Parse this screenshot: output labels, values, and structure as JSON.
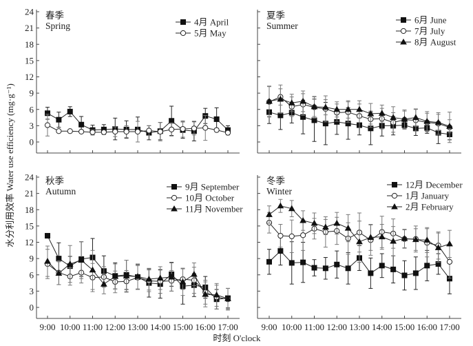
{
  "chart_data": {
    "type": "line",
    "ylabel": "水分利用效率 Water use efficiency (mg·g⁻¹)",
    "xlabel": "时刻 O'clock",
    "x": [
      "9:00",
      "9:30",
      "10:00",
      "10:30",
      "11:00",
      "11:30",
      "12:00",
      "12:30",
      "13:00",
      "13:30",
      "14:00",
      "14:30",
      "15:00",
      "15:30",
      "16:00",
      "16:30",
      "17:00"
    ],
    "xtick_labels": [
      "9:00",
      "10:00",
      "11:00",
      "12:00",
      "13:00",
      "14:00",
      "15:00",
      "16:00",
      "17:00"
    ],
    "ytick_labels": [
      "0",
      "3",
      "6",
      "9",
      "12",
      "15",
      "18",
      "21",
      "24"
    ],
    "ylim": [
      -2,
      24
    ],
    "grid": false,
    "legend_position": "top-right",
    "panels": [
      {
        "title_cn": "春季",
        "title_en": "Spring",
        "series": [
          {
            "name": "4月 April",
            "marker": "square",
            "values": [
              5.3,
              4.1,
              5.6,
              3.2,
              2.2,
              2.3,
              2.4,
              2.3,
              2.3,
              1.7,
              2.0,
              3.9,
              2.2,
              2.0,
              4.8,
              4.2,
              2.2
            ],
            "errors": [
              1.1,
              1.4,
              0.9,
              1.5,
              0.9,
              0.9,
              2.0,
              1.6,
              2.3,
              1.3,
              1.6,
              2.7,
              1.5,
              1.8,
              1.4,
              2.1,
              0.8
            ]
          },
          {
            "name": "5月 May",
            "marker": "circle",
            "values": [
              3.1,
              2.0,
              2.0,
              1.9,
              1.8,
              1.8,
              1.9,
              1.9,
              1.9,
              2.1,
              1.9,
              2.3,
              2.4,
              2.5,
              2.6,
              2.2,
              1.7
            ],
            "errors": [
              2.0,
              0.2,
              0.2,
              0.3,
              0.5,
              0.3,
              0.9,
              1.1,
              1.9,
              0.9,
              1.7,
              1.2,
              1.5,
              1.2,
              2.3,
              0.3,
              0.4
            ]
          }
        ]
      },
      {
        "title_cn": "夏季",
        "title_en": "Summer",
        "series": [
          {
            "name": "6月 June",
            "marker": "square",
            "values": [
              5.5,
              4.9,
              5.4,
              4.6,
              4.0,
              3.4,
              3.7,
              3.4,
              3.1,
              2.5,
              3.0,
              3.0,
              3.1,
              2.5,
              2.6,
              1.7,
              1.4
            ],
            "errors": [
              2.1,
              2.6,
              1.9,
              3.1,
              3.9,
              3.9,
              2.3,
              2.9,
              1.8,
              3.0,
              1.9,
              1.7,
              0.7,
              1.3,
              1.0,
              2.0,
              1.0
            ]
          },
          {
            "name": "7月 July",
            "marker": "circle",
            "values": [
              7.4,
              8.3,
              6.5,
              6.9,
              6.4,
              6.1,
              5.4,
              5.5,
              4.8,
              4.2,
              4.3,
              3.6,
              4.1,
              4.0,
              3.6,
              3.4,
              2.7
            ],
            "errors": [
              2.8,
              1.5,
              1.8,
              2.0,
              2.0,
              2.4,
              1.6,
              1.9,
              2.2,
              1.5,
              1.9,
              1.8,
              1.6,
              2.0,
              1.7,
              2.0,
              2.8
            ]
          },
          {
            "name": "8月 August",
            "marker": "triangle",
            "values": [
              7.5,
              7.9,
              7.2,
              7.5,
              6.5,
              6.4,
              6.0,
              6.0,
              6.0,
              5.2,
              5.3,
              4.5,
              4.2,
              4.5,
              3.8,
              3.6,
              2.9
            ],
            "errors": [
              2.8,
              2.6,
              1.6,
              1.9,
              1.8,
              1.4,
              1.4,
              1.6,
              1.6,
              1.9,
              1.5,
              2.0,
              1.7,
              1.6,
              1.8,
              1.5,
              1.2
            ]
          }
        ]
      },
      {
        "title_cn": "秋季",
        "title_en": "Autumn",
        "series": [
          {
            "name": "9月 September",
            "marker": "square",
            "values": [
              13.2,
              9.0,
              7.6,
              8.9,
              9.2,
              6.7,
              5.8,
              6.0,
              5.6,
              4.5,
              4.3,
              6.1,
              3.9,
              4.1,
              3.7,
              1.5,
              1.7
            ],
            "errors": [
              0.3,
              2.9,
              1.8,
              3.2,
              3.5,
              2.8,
              2.4,
              2.7,
              2.3,
              2.6,
              2.6,
              2.2,
              3.3,
              2.1,
              2.0,
              1.8,
              1.8
            ]
          },
          {
            "name": "10月 October",
            "marker": "circle",
            "values": [
              8.0,
              6.4,
              5.7,
              6.4,
              5.5,
              5.6,
              4.7,
              4.8,
              5.5,
              4.9,
              4.8,
              4.9,
              5.2,
              5.0,
              2.8,
              1.9,
              1.5
            ],
            "errors": [
              2.7,
              2.2,
              1.6,
              1.9,
              2.6,
              1.9,
              2.0,
              2.0,
              2.2,
              2.0,
              2.2,
              1.9,
              1.9,
              2.4,
              2.2,
              2.2,
              2.0
            ]
          },
          {
            "name": "11月 November",
            "marker": "triangle",
            "values": [
              8.5,
              6.3,
              8.0,
              8.7,
              6.9,
              4.3,
              5.7,
              5.8,
              5.7,
              5.2,
              5.4,
              5.6,
              4.7,
              6.1,
              2.4,
              2.3,
              1.6
            ],
            "errors": [
              2.8,
              2.1,
              3.4,
              3.4,
              3.6,
              1.8,
              2.3,
              2.9,
              2.3,
              2.0,
              2.1,
              2.6,
              2.5,
              2.1,
              2.3,
              2.1,
              1.9
            ]
          }
        ]
      },
      {
        "title_cn": "冬季",
        "title_en": "Winter",
        "series": [
          {
            "name": "12月 December",
            "marker": "square",
            "values": [
              8.4,
              10.4,
              8.2,
              8.3,
              7.3,
              7.2,
              7.9,
              7.2,
              9.1,
              6.3,
              7.7,
              7.0,
              5.9,
              6.3,
              7.7,
              8.0,
              5.3
            ],
            "errors": [
              2.3,
              2.6,
              3.9,
              3.7,
              1.5,
              2.0,
              2.5,
              2.9,
              2.3,
              2.8,
              2.2,
              2.5,
              2.7,
              3.0,
              2.8,
              1.9,
              2.8
            ]
          },
          {
            "name": "1月 January",
            "marker": "circle",
            "values": [
              15.6,
              13.2,
              13.1,
              13.3,
              14.5,
              13.9,
              14.1,
              12.7,
              13.8,
              12.4,
              13.9,
              13.6,
              12.6,
              12.6,
              11.9,
              11.4,
              8.4
            ],
            "errors": [
              1.9,
              2.1,
              3.0,
              2.8,
              1.9,
              2.8,
              2.5,
              2.9,
              3.6,
              2.8,
              2.9,
              2.7,
              1.7,
              2.4,
              2.6,
              2.5,
              3.0
            ]
          },
          {
            "name": "2月 February",
            "marker": "triangle",
            "values": [
              17.1,
              18.7,
              18.2,
              16.0,
              15.5,
              14.8,
              15.5,
              14.6,
              12.1,
              12.9,
              13.0,
              12.2,
              12.7,
              12.5,
              12.4,
              11.0,
              11.7
            ],
            "errors": [
              1.6,
              1.2,
              1.5,
              1.8,
              1.9,
              1.4,
              2.0,
              2.5,
              3.8,
              2.4,
              2.3,
              2.7,
              1.7,
              2.0,
              2.3,
              2.7,
              2.5
            ]
          }
        ]
      }
    ]
  }
}
